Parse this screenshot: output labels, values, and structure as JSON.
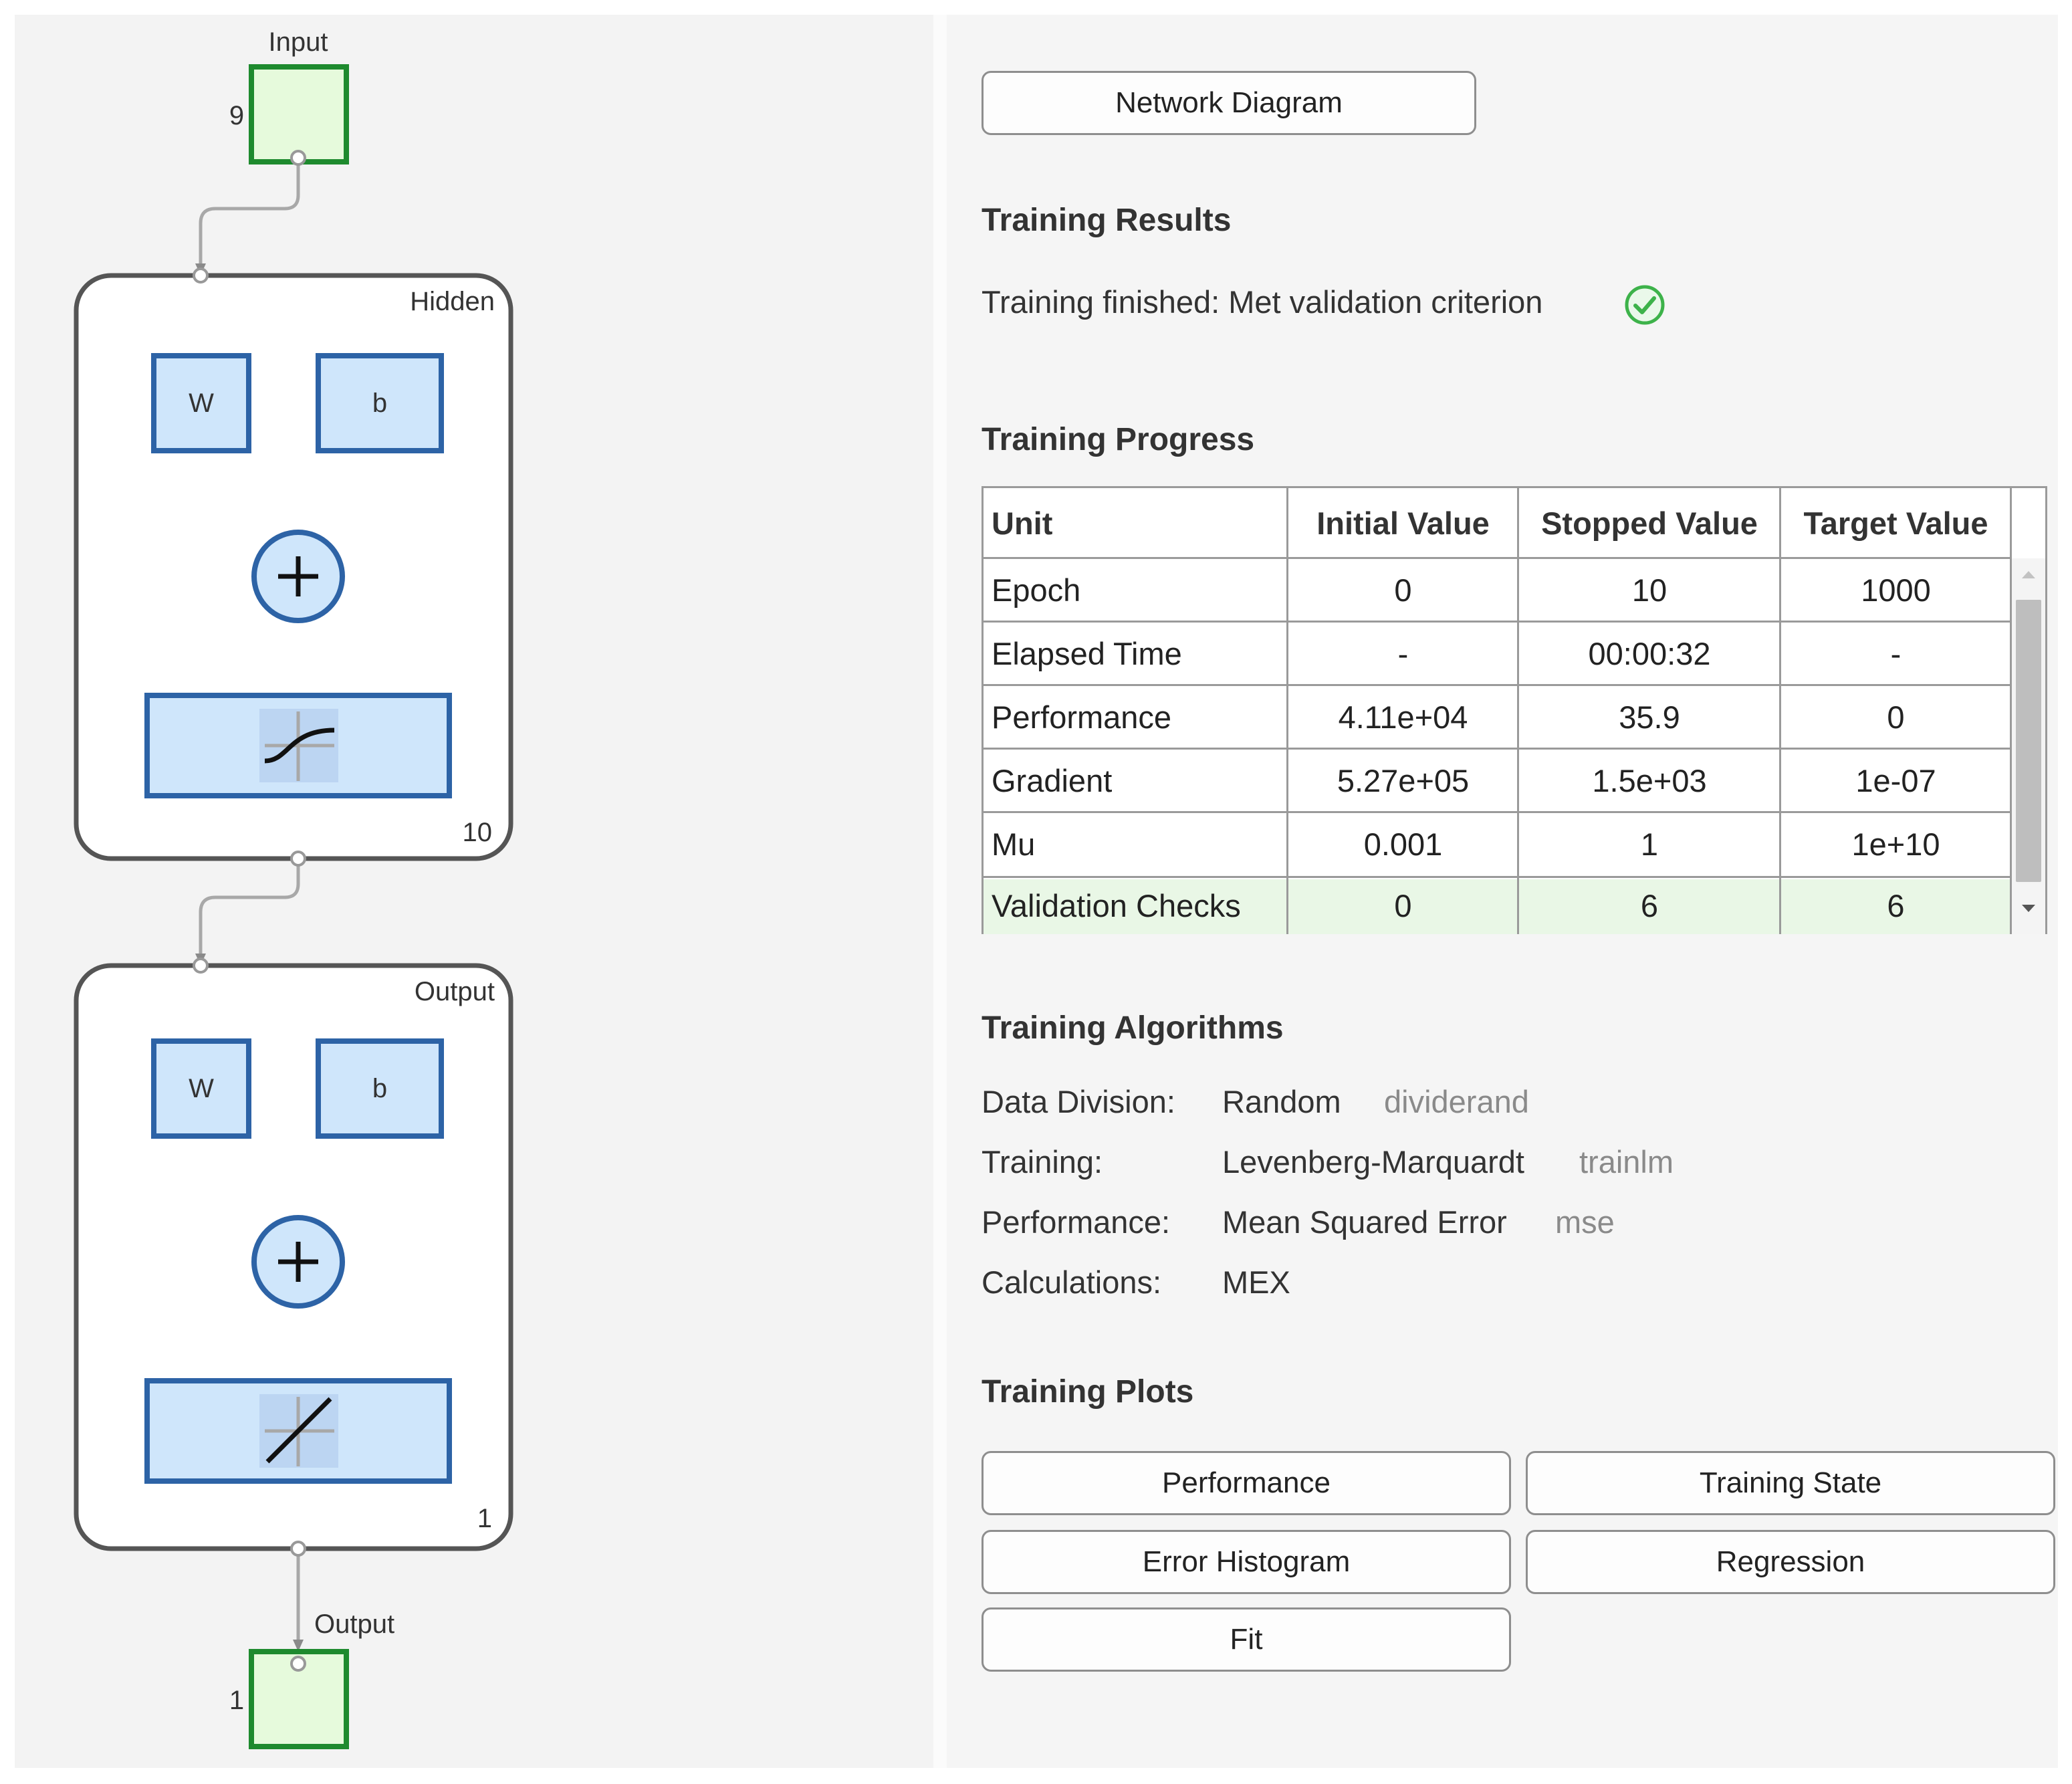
{
  "diagram": {
    "input_label": "Input",
    "input_size": "9",
    "hidden": {
      "label": "Hidden",
      "weight": "W",
      "bias": "b",
      "size": "10"
    },
    "output_layer": {
      "label": "Output",
      "weight": "W",
      "bias": "b",
      "size": "1"
    },
    "output_label": "Output",
    "output_size": "1",
    "icons": [
      "plus-icon",
      "tansig-icon",
      "purelin-icon"
    ]
  },
  "network_diagram_button": "Network Diagram",
  "training_results": {
    "title": "Training Results",
    "status": "Training finished: Met validation criterion",
    "status_icon": "check-circle-icon",
    "status_color": "#3db24a"
  },
  "training_progress": {
    "title": "Training Progress",
    "columns": [
      "Unit",
      "Initial Value",
      "Stopped Value",
      "Target Value"
    ],
    "rows": [
      {
        "unit": "Epoch",
        "initial": "0",
        "stopped": "10",
        "target": "1000"
      },
      {
        "unit": "Elapsed Time",
        "initial": "-",
        "stopped": "00:00:32",
        "target": "-"
      },
      {
        "unit": "Performance",
        "initial": "4.11e+04",
        "stopped": "35.9",
        "target": "0"
      },
      {
        "unit": "Gradient",
        "initial": "5.27e+05",
        "stopped": "1.5e+03",
        "target": "1e-07"
      },
      {
        "unit": "Mu",
        "initial": "0.001",
        "stopped": "1",
        "target": "1e+10"
      },
      {
        "unit": "Validation Checks",
        "initial": "0",
        "stopped": "6",
        "target": "6"
      }
    ],
    "highlight_color": "#e9f7e6"
  },
  "training_algorithms": {
    "title": "Training Algorithms",
    "items": [
      {
        "label": "Data Division:",
        "value": "Random",
        "fn": "dividerand"
      },
      {
        "label": "Training:",
        "value": "Levenberg-Marquardt",
        "fn": "trainlm"
      },
      {
        "label": "Performance:",
        "value": "Mean Squared Error",
        "fn": "mse"
      },
      {
        "label": "Calculations:",
        "value": "MEX",
        "fn": ""
      }
    ]
  },
  "training_plots": {
    "title": "Training Plots",
    "buttons": [
      "Performance",
      "Training State",
      "Error Histogram",
      "Regression",
      "Fit"
    ]
  }
}
